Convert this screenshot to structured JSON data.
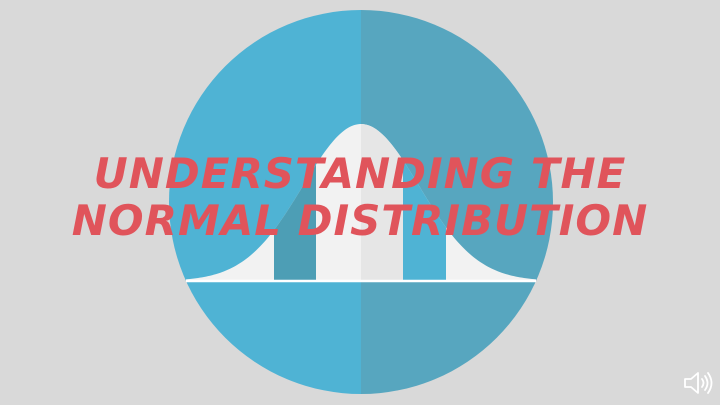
{
  "slide": {
    "title_line1": "UNDERSTANDING THE",
    "title_line2": "NORMAL DISTRIBUTION"
  },
  "colors": {
    "background": "#d9d9d9",
    "circle_left": "#4fb3d4",
    "circle_right": "#57a6bf",
    "curve_fill": "#f2f2f2",
    "band_dark": "#4d9eb5",
    "band_light": "#4fb3d4",
    "title": "#e0545b"
  },
  "icons": {
    "audio": "speaker-icon"
  }
}
